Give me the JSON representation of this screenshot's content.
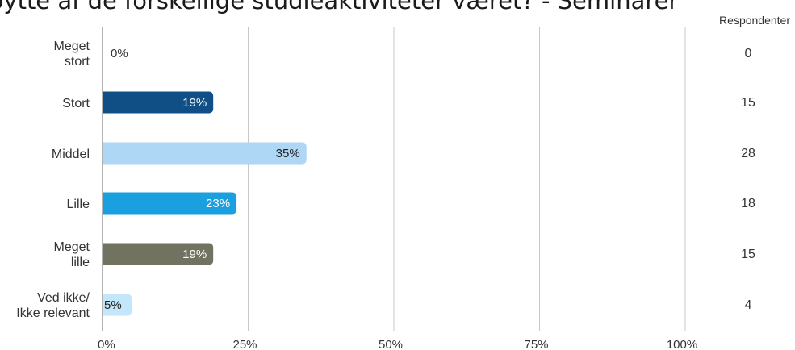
{
  "title": "bytte af de forskellige studieaktiviteter været? - Seminarer",
  "respondents_header": "Respondenter",
  "chart_data": {
    "type": "bar",
    "orientation": "horizontal",
    "categories": [
      [
        "Meget",
        "stort"
      ],
      [
        "Stort"
      ],
      [
        "Middel"
      ],
      [
        "Lille"
      ],
      [
        "Meget",
        "lille"
      ],
      [
        "Ved ikke/",
        "Ikke relevant"
      ]
    ],
    "values": [
      0,
      19,
      35,
      23,
      19,
      5
    ],
    "value_labels": [
      "0%",
      "19%",
      "35%",
      "23%",
      "19%",
      "5%"
    ],
    "respondents": [
      "0",
      "15",
      "28",
      "18",
      "15",
      "4"
    ],
    "colors": [
      "#1f5a8c",
      "#0f4f86",
      "#aed6f5",
      "#1aa0de",
      "#727260",
      "#c3e6fb"
    ],
    "label_colors": [
      "#333333",
      "#ffffff",
      "#222222",
      "#ffffff",
      "#ffffff",
      "#222222"
    ],
    "xlim": [
      0,
      100
    ],
    "xticks": [
      0,
      25,
      50,
      75,
      100
    ],
    "xtick_labels": [
      "0%",
      "25%",
      "50%",
      "75%",
      "100%"
    ],
    "grid": true
  }
}
